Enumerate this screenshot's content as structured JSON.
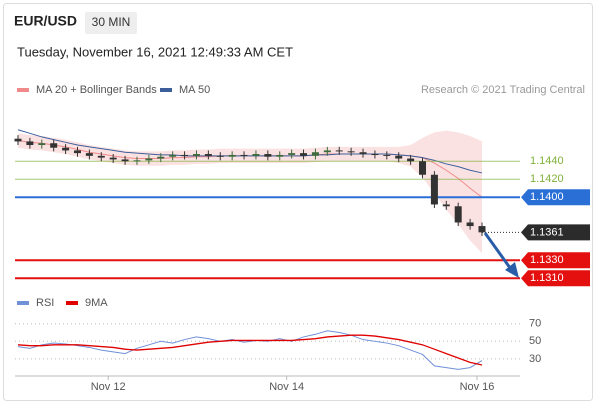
{
  "header": {
    "symbol": "EUR/USD",
    "interval": "30 MIN",
    "timestamp": "Tuesday, November 16, 2021 12:49:33 AM CET"
  },
  "chart_data": [
    {
      "type": "candlestick",
      "credit": "Research © 2021 Trading Central",
      "up_color": "#3d6b3d",
      "down_color": "#333333",
      "open": [
        1.1465,
        1.1462,
        1.1458,
        1.146,
        1.1455,
        1.1452,
        1.1449,
        1.1446,
        1.1444,
        1.1442,
        1.144,
        1.1441,
        1.1443,
        1.1445,
        1.1447,
        1.1446,
        1.1448,
        1.1446,
        1.1445,
        1.1447,
        1.1446,
        1.1448,
        1.1445,
        1.1447,
        1.1449,
        1.1446,
        1.145,
        1.1452,
        1.1451,
        1.145,
        1.1448,
        1.1447,
        1.1446,
        1.1443,
        1.144,
        1.1425,
        1.1392,
        1.139,
        1.1372,
        1.1368
      ],
      "high": [
        1.1469,
        1.1466,
        1.1464,
        1.1464,
        1.1459,
        1.1456,
        1.1453,
        1.145,
        1.1448,
        1.1446,
        1.1445,
        1.1447,
        1.1449,
        1.1451,
        1.1451,
        1.1452,
        1.1452,
        1.145,
        1.1451,
        1.1451,
        1.1452,
        1.1452,
        1.1451,
        1.1453,
        1.1453,
        1.1454,
        1.1456,
        1.1456,
        1.1455,
        1.1454,
        1.1452,
        1.1451,
        1.145,
        1.1447,
        1.1444,
        1.1429,
        1.1396,
        1.1394,
        1.1376,
        1.1372
      ],
      "low": [
        1.1458,
        1.1454,
        1.1454,
        1.1451,
        1.1448,
        1.1445,
        1.1442,
        1.144,
        1.1438,
        1.1436,
        1.1436,
        1.1437,
        1.1439,
        1.1441,
        1.1442,
        1.1442,
        1.1442,
        1.1441,
        1.1441,
        1.1442,
        1.1442,
        1.1441,
        1.1441,
        1.1443,
        1.1442,
        1.1442,
        1.1446,
        1.1447,
        1.1446,
        1.1444,
        1.1443,
        1.1442,
        1.1439,
        1.1436,
        1.1421,
        1.1388,
        1.1386,
        1.1368,
        1.1364,
        1.1357
      ],
      "close": [
        1.1462,
        1.1458,
        1.146,
        1.1455,
        1.1452,
        1.1449,
        1.1446,
        1.1444,
        1.1442,
        1.144,
        1.1441,
        1.1443,
        1.1445,
        1.1447,
        1.1446,
        1.1448,
        1.1446,
        1.1445,
        1.1447,
        1.1446,
        1.1448,
        1.1445,
        1.1447,
        1.1449,
        1.1446,
        1.145,
        1.1452,
        1.1451,
        1.145,
        1.1448,
        1.1447,
        1.1446,
        1.1443,
        1.144,
        1.1425,
        1.1392,
        1.139,
        1.1372,
        1.1368,
        1.1361
      ],
      "series": [
        {
          "name": "MA 20 + Bollinger Bands",
          "color": "#f08a8a",
          "values": [
            1.1463,
            1.1461,
            1.146,
            1.1458,
            1.1456,
            1.1453,
            1.145,
            1.1448,
            1.1446,
            1.1444,
            1.1443,
            1.1443,
            1.1443,
            1.1444,
            1.1444,
            1.1445,
            1.1445,
            1.1446,
            1.1446,
            1.1446,
            1.1446,
            1.1446,
            1.1446,
            1.1446,
            1.1446,
            1.1447,
            1.1448,
            1.1448,
            1.1448,
            1.1448,
            1.1448,
            1.1448,
            1.1447,
            1.1446,
            1.1444,
            1.1438,
            1.143,
            1.1421,
            1.141,
            1.14
          ],
          "band_upper": [
            1.1471,
            1.1469,
            1.1468,
            1.1466,
            1.1464,
            1.1461,
            1.1458,
            1.1456,
            1.1454,
            1.1452,
            1.1451,
            1.1451,
            1.1451,
            1.1452,
            1.1452,
            1.1453,
            1.1453,
            1.1454,
            1.1454,
            1.1454,
            1.1454,
            1.1454,
            1.1454,
            1.1454,
            1.1454,
            1.1455,
            1.1456,
            1.1456,
            1.1456,
            1.1456,
            1.1456,
            1.1456,
            1.1456,
            1.1458,
            1.1466,
            1.1472,
            1.1474,
            1.1472,
            1.1468,
            1.1462
          ],
          "band_lower": [
            1.1455,
            1.1453,
            1.1452,
            1.145,
            1.1448,
            1.1445,
            1.1442,
            1.144,
            1.1438,
            1.1436,
            1.1435,
            1.1435,
            1.1435,
            1.1436,
            1.1436,
            1.1437,
            1.1437,
            1.1438,
            1.1438,
            1.1438,
            1.1438,
            1.1438,
            1.1438,
            1.1438,
            1.1438,
            1.1439,
            1.144,
            1.144,
            1.144,
            1.144,
            1.144,
            1.144,
            1.1438,
            1.1434,
            1.1422,
            1.1404,
            1.1386,
            1.137,
            1.1352,
            1.1338
          ]
        },
        {
          "name": "MA 50",
          "color": "#3c5f9c",
          "values": [
            1.1475,
            1.1471,
            1.1467,
            1.1464,
            1.1461,
            1.1458,
            1.1456,
            1.1454,
            1.1452,
            1.145,
            1.1449,
            1.1448,
            1.1447,
            1.1447,
            1.1446,
            1.1446,
            1.1446,
            1.1446,
            1.1446,
            1.1446,
            1.1446,
            1.1446,
            1.1446,
            1.1446,
            1.1446,
            1.1447,
            1.1447,
            1.1448,
            1.1448,
            1.1448,
            1.1448,
            1.1448,
            1.1447,
            1.1446,
            1.1444,
            1.1441,
            1.1437,
            1.1434,
            1.143,
            1.1427
          ]
        }
      ],
      "levels": [
        {
          "value": 1.144,
          "label": "1.1440",
          "color": "#7fb03a",
          "filled": false
        },
        {
          "value": 1.142,
          "label": "1.1420",
          "color": "#7fb03a",
          "filled": false
        },
        {
          "value": 1.14,
          "label": "1.1400",
          "color": "#2a6fd6",
          "filled": true
        },
        {
          "value": 1.1361,
          "label": "1.1361",
          "color": "#2b2b2b",
          "filled": true
        },
        {
          "value": 1.133,
          "label": "1.1330",
          "color": "#e41010",
          "filled": true
        },
        {
          "value": 1.131,
          "label": "1.1310",
          "color": "#e41010",
          "filled": true
        }
      ],
      "ylim": [
        1.1297,
        1.1508
      ]
    },
    {
      "type": "line",
      "categories": [
        null,
        null,
        null,
        null,
        null,
        null,
        null,
        null,
        "Nov 12",
        null,
        null,
        null,
        null,
        null,
        null,
        null,
        null,
        null,
        null,
        null,
        null,
        null,
        null,
        "Nov 14",
        null,
        null,
        null,
        null,
        null,
        null,
        null,
        null,
        null,
        null,
        null,
        null,
        null,
        null,
        null,
        "Nov 16"
      ],
      "series": [
        {
          "name": "RSI",
          "color": "#7090d8",
          "values": [
            44,
            42,
            46,
            48,
            47,
            45,
            43,
            40,
            38,
            36,
            42,
            46,
            50,
            48,
            52,
            55,
            53,
            50,
            52,
            49,
            51,
            50,
            53,
            50,
            55,
            58,
            62,
            60,
            57,
            52,
            50,
            48,
            45,
            40,
            35,
            22,
            20,
            18,
            20,
            28
          ]
        },
        {
          "name": "9MA",
          "color": "#e00000",
          "values": [
            46,
            45,
            45,
            46,
            46,
            46,
            45,
            44,
            43,
            41,
            40,
            41,
            42,
            43,
            45,
            47,
            49,
            50,
            51,
            51,
            51,
            51,
            51,
            51,
            52,
            53,
            55,
            56,
            57,
            57,
            56,
            54,
            52,
            49,
            46,
            41,
            36,
            31,
            26,
            23
          ]
        }
      ],
      "ylim": [
        15,
        80
      ],
      "yticks": [
        70,
        50,
        30
      ],
      "grid": true
    }
  ]
}
